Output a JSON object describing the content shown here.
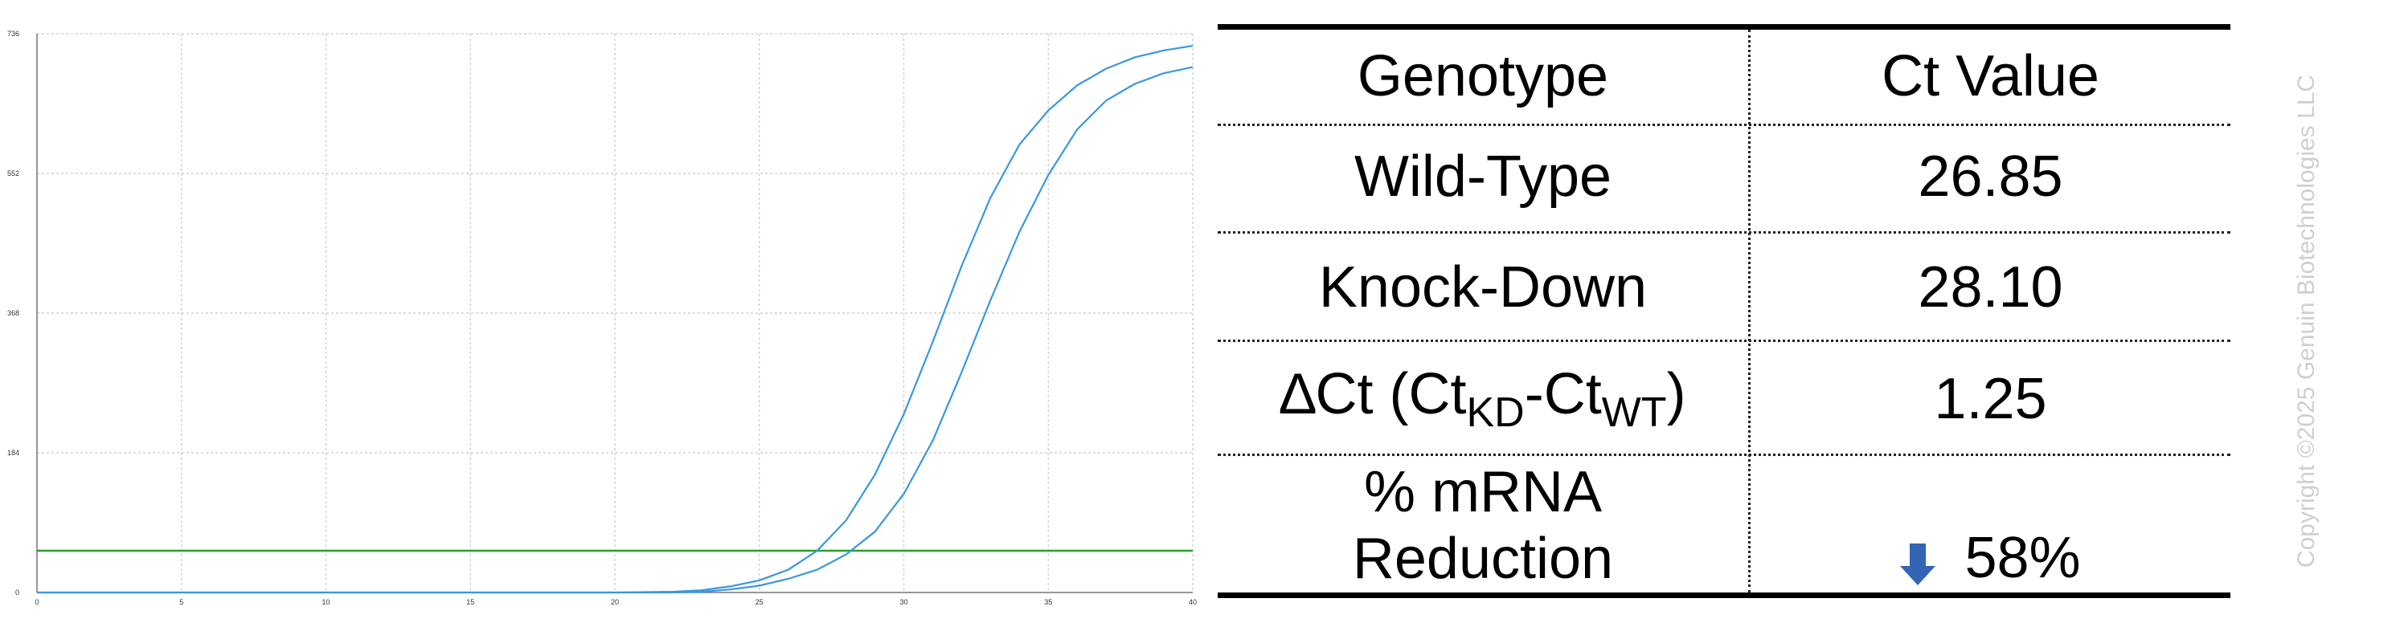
{
  "chart_data": {
    "type": "line",
    "title": "",
    "xlabel": "",
    "ylabel": "",
    "xlim": [
      0,
      40
    ],
    "ylim": [
      0,
      736
    ],
    "x_ticks": [
      "0",
      "5",
      "10",
      "15",
      "20",
      "25",
      "30",
      "35",
      "40"
    ],
    "y_ticks": [
      "0",
      "184",
      "368",
      "552",
      "736"
    ],
    "grid": true,
    "threshold": {
      "y": 55,
      "color": "#2aa02a"
    },
    "series": [
      {
        "color": "#3a97dd",
        "x": [
          0,
          20,
          22,
          23,
          24,
          25,
          26,
          27,
          28,
          29,
          30,
          31,
          32,
          33,
          34,
          35,
          36,
          37,
          38,
          39,
          40
        ],
        "y": [
          0,
          0,
          1,
          3,
          8,
          16,
          30,
          55,
          95,
          155,
          235,
          330,
          430,
          520,
          590,
          635,
          668,
          690,
          705,
          714,
          720
        ]
      },
      {
        "color": "#3a97dd",
        "x": [
          0,
          22,
          23,
          24,
          25,
          26,
          27,
          28,
          29,
          30,
          31,
          32,
          33,
          34,
          35,
          36,
          37,
          38,
          39,
          40
        ],
        "y": [
          0,
          0,
          1,
          4,
          9,
          18,
          30,
          50,
          80,
          130,
          200,
          290,
          385,
          475,
          550,
          610,
          648,
          670,
          684,
          692
        ]
      }
    ]
  },
  "table": {
    "header": {
      "genotype": "Genotype",
      "ct": "Ct Value"
    },
    "rows": {
      "wild_type": {
        "label": "Wild-Type",
        "value": "26.85"
      },
      "knock_down": {
        "label": "Knock-Down",
        "value": "28.10"
      },
      "delta": {
        "label_main": "∆Ct (Ct",
        "label_sub1": "KD",
        "label_mid": "-Ct",
        "label_sub2": "WT",
        "label_end": ")",
        "value": "1.25"
      },
      "reduction": {
        "label_line1": "% mRNA",
        "label_line2": "Reduction",
        "value": "58%",
        "arrow_icon": "down-arrow-icon",
        "arrow_color": "#3464b4"
      }
    }
  },
  "copyright": "Copyright ©2025 Genuin Biotechnologies LLC"
}
